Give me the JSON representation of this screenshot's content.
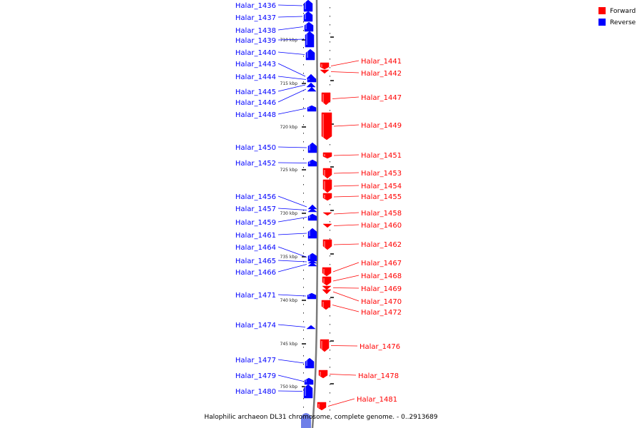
{
  "legend": {
    "forward_label": "Forward",
    "reverse_label": "Reverse",
    "forward_color": "#ff0000",
    "reverse_color": "#0000ff"
  },
  "caption": "Halophilic archaeon DL31 chromosome, complete genome. - 0..2913689",
  "ruler_ticks": [
    {
      "label": "710 kbp",
      "pos_kbp": 710
    },
    {
      "label": "715 kbp",
      "pos_kbp": 715
    },
    {
      "label": "720 kbp",
      "pos_kbp": 720
    },
    {
      "label": "725 kbp",
      "pos_kbp": 725
    },
    {
      "label": "730 kbp",
      "pos_kbp": 730
    },
    {
      "label": "735 kbp",
      "pos_kbp": 735
    },
    {
      "label": "740 kbp",
      "pos_kbp": 740
    },
    {
      "label": "745 kbp",
      "pos_kbp": 745
    },
    {
      "label": "750 kbp",
      "pos_kbp": 750
    }
  ],
  "reverse_genes": [
    "Halar_1436",
    "Halar_1437",
    "Halar_1438",
    "Halar_1439",
    "Halar_1440",
    "Halar_1443",
    "Halar_1444",
    "Halar_1445",
    "Halar_1446",
    "Halar_1448",
    "Halar_1450",
    "Halar_1452",
    "Halar_1456",
    "Halar_1457",
    "Halar_1459",
    "Halar_1461",
    "Halar_1464",
    "Halar_1465",
    "Halar_1466",
    "Halar_1471",
    "Halar_1474",
    "Halar_1477",
    "Halar_1479",
    "Halar_1480"
  ],
  "forward_genes": [
    "Halar_1441",
    "Halar_1442",
    "Halar_1447",
    "Halar_1449",
    "Halar_1451",
    "Halar_1453",
    "Halar_1454",
    "Halar_1455",
    "Halar_1458",
    "Halar_1460",
    "Halar_1462",
    "Halar_1467",
    "Halar_1468",
    "Halar_1469",
    "Halar_1470",
    "Halar_1472",
    "Halar_1476",
    "Halar_1478",
    "Halar_1481"
  ]
}
